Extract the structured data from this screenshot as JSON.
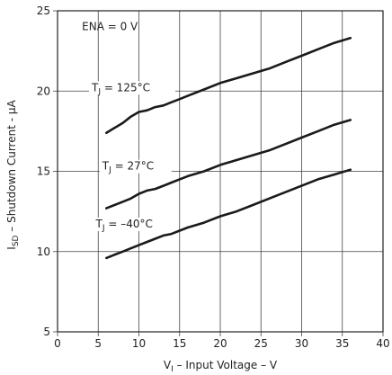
{
  "chart_data": {
    "type": "line",
    "xlabel_main": "V",
    "xlabel_sub": "I",
    "xlabel_rest": " – Input Voltage – V",
    "ylabel_main": "I",
    "ylabel_sub": "SD",
    "ylabel_rest": " – Shutdown Current   - μA",
    "xlim": [
      0,
      40
    ],
    "ylim": [
      5,
      25
    ],
    "x_ticks": [
      0,
      5,
      10,
      15,
      20,
      25,
      30,
      35,
      40
    ],
    "y_ticks": [
      5,
      10,
      15,
      20,
      25
    ],
    "grid": true,
    "annotation": "ENA = 0 V",
    "series": [
      {
        "name": "T  = 125°C",
        "label_main": "T",
        "label_sub": "J",
        "label_rest": " = 125°C",
        "x": [
          6,
          7,
          8,
          9,
          10,
          11,
          12,
          13,
          14,
          15,
          16,
          18,
          20,
          22,
          24,
          26,
          28,
          30,
          32,
          34,
          36
        ],
        "y": [
          17.4,
          17.7,
          18.0,
          18.4,
          18.7,
          18.8,
          19.0,
          19.1,
          19.3,
          19.5,
          19.7,
          20.1,
          20.5,
          20.8,
          21.1,
          21.4,
          21.8,
          22.2,
          22.6,
          23.0,
          23.3
        ]
      },
      {
        "name": "T  = 27°C",
        "label_main": "T",
        "label_sub": "J",
        "label_rest": " = 27°C",
        "x": [
          6,
          7,
          8,
          9,
          10,
          11,
          12,
          13,
          14,
          15,
          16,
          18,
          20,
          22,
          24,
          26,
          28,
          30,
          32,
          34,
          36
        ],
        "y": [
          12.7,
          12.9,
          13.1,
          13.3,
          13.6,
          13.8,
          13.9,
          14.1,
          14.3,
          14.5,
          14.7,
          15.0,
          15.4,
          15.7,
          16.0,
          16.3,
          16.7,
          17.1,
          17.5,
          17.9,
          18.2
        ]
      },
      {
        "name": "T  = –40°C",
        "label_main": "T",
        "label_sub": "J",
        "label_rest": " = –40°C",
        "x": [
          6,
          7,
          8,
          9,
          10,
          11,
          12,
          13,
          14,
          15,
          16,
          18,
          20,
          22,
          24,
          26,
          28,
          30,
          32,
          34,
          36
        ],
        "y": [
          9.6,
          9.8,
          10.0,
          10.2,
          10.4,
          10.6,
          10.8,
          11.0,
          11.1,
          11.3,
          11.5,
          11.8,
          12.2,
          12.5,
          12.9,
          13.3,
          13.7,
          14.1,
          14.5,
          14.8,
          15.1
        ]
      }
    ]
  }
}
